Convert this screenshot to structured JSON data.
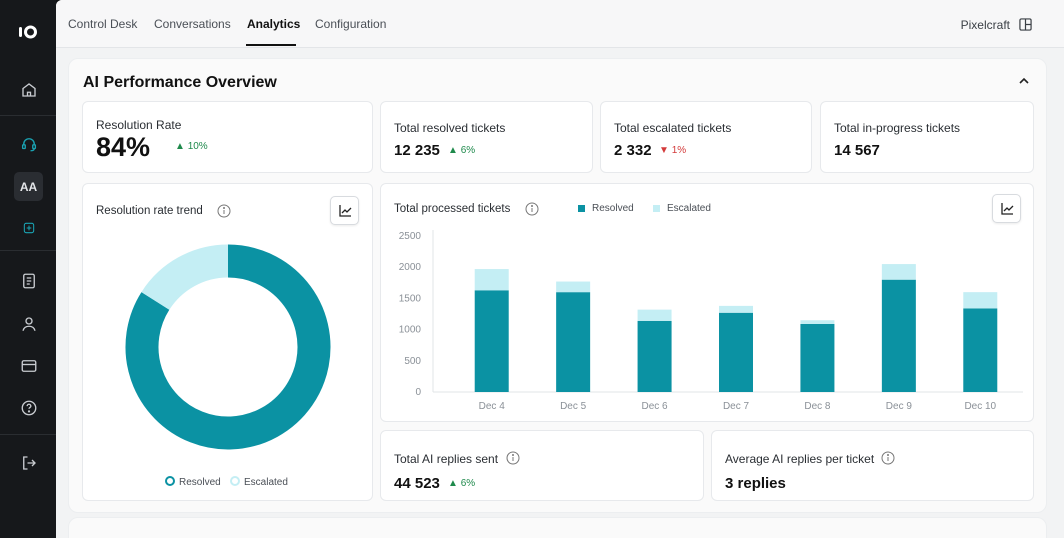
{
  "sidebar": {
    "items": [
      {
        "name": "home-icon"
      },
      {
        "name": "headset-icon"
      },
      {
        "name": "aa-avatar",
        "label": "AA"
      },
      {
        "name": "add-icon"
      },
      {
        "name": "document-icon"
      },
      {
        "name": "user-icon"
      },
      {
        "name": "card-icon"
      },
      {
        "name": "help-icon"
      },
      {
        "name": "logout-icon"
      }
    ],
    "accent": "#1aa3b3"
  },
  "topnav": {
    "tabs": [
      "Control Desk",
      "Conversations",
      "Analytics",
      "Configuration"
    ],
    "active_tab": "Analytics",
    "brand": "Pixelcraft"
  },
  "panel": {
    "title": "AI Performance Overview"
  },
  "kpis": {
    "resolution_rate": {
      "label": "Resolution Rate",
      "value": "84%",
      "delta": "10%",
      "trend": "up"
    },
    "resolved": {
      "label": "Total resolved tickets",
      "value": "12 235",
      "delta": "6%",
      "trend": "up"
    },
    "escalated": {
      "label": "Total escalated tickets",
      "value": "2 332",
      "delta": "1%",
      "trend": "down"
    },
    "in_progress": {
      "label": "Total in-progress tickets",
      "value": "14 567"
    }
  },
  "donut": {
    "title": "Resolution rate trend",
    "legend": [
      "Resolved",
      "Escalated"
    ]
  },
  "bar_chart": {
    "title": "Total processed tickets",
    "legend": [
      "Resolved",
      "Escalated"
    ]
  },
  "bottom_kpis": {
    "replies": {
      "label": "Total AI replies sent",
      "value": "44 523",
      "delta": "6%",
      "trend": "up"
    },
    "avg": {
      "label": "Average AI replies per ticket",
      "value": "3 replies"
    }
  },
  "colors": {
    "resolved": "#0b92a3",
    "escalated": "#c4eef4",
    "up": "#1f8a4c",
    "down": "#d33a3a"
  },
  "chart_data": [
    {
      "type": "pie",
      "title": "Resolution rate trend",
      "labels": [
        "Resolved",
        "Escalated"
      ],
      "values": [
        84,
        16
      ]
    },
    {
      "type": "bar",
      "title": "Total processed tickets",
      "categories": [
        "Dec 4",
        "Dec 5",
        "Dec 6",
        "Dec 7",
        "Dec 8",
        "Dec 9",
        "Dec 10"
      ],
      "series": [
        {
          "name": "Resolved",
          "values": [
            1630,
            1600,
            1140,
            1270,
            1090,
            1800,
            1340
          ]
        },
        {
          "name": "Escalated",
          "values": [
            340,
            170,
            180,
            110,
            60,
            250,
            260
          ]
        }
      ],
      "stacked": true,
      "ylim": [
        0,
        2500
      ],
      "yticks": [
        0,
        500,
        1000,
        1500,
        2000,
        2500
      ],
      "grid": false,
      "legend": "top"
    }
  ]
}
